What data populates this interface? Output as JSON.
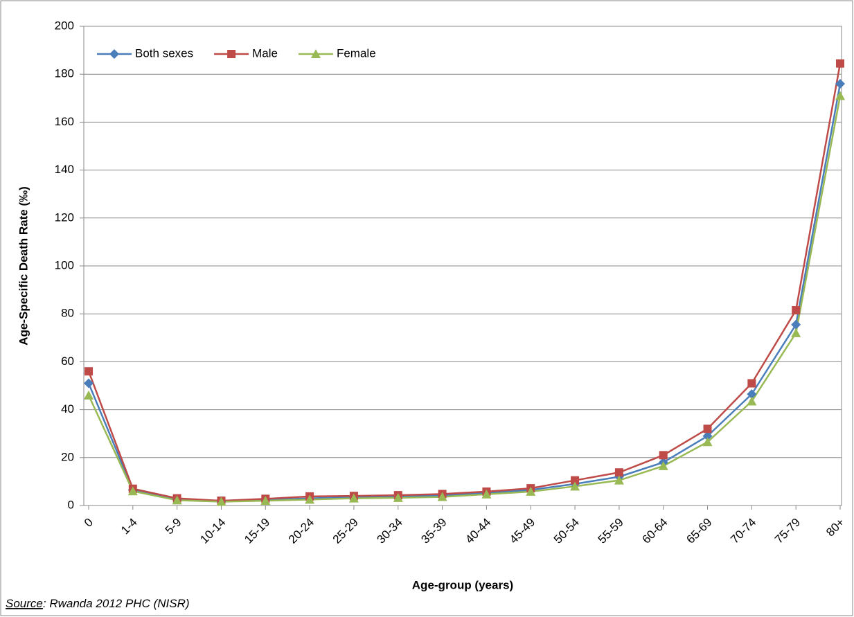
{
  "chart_data": {
    "type": "line",
    "y_label": "Age-Specific Death Rate (‰)",
    "x_label": "Age-group (years)",
    "source_label": "Source",
    "source_text": ": Rwanda 2012 PHC (NISR)",
    "categories": [
      "0",
      "1-4",
      "5-9",
      "10-14",
      "15-19",
      "20-24",
      "25-29",
      "30-34",
      "35-39",
      "40-44",
      "45-49",
      "50-54",
      "55-59",
      "60-64",
      "65-69",
      "70-74",
      "75-79",
      "80+"
    ],
    "series": [
      {
        "name": "Both sexes",
        "color": "#4a7ebb",
        "marker": "diamond",
        "values": [
          51,
          6.5,
          2.5,
          1.8,
          2.3,
          3,
          3.5,
          3.8,
          4.2,
          5.2,
          6.5,
          9,
          12,
          18,
          29,
          46.5,
          75.5,
          176
        ]
      },
      {
        "name": "Male",
        "color": "#be4b48",
        "marker": "square",
        "values": [
          56,
          7,
          3,
          2,
          2.8,
          3.8,
          4,
          4.3,
          4.8,
          5.8,
          7.2,
          10.5,
          13.8,
          21,
          32,
          51,
          81.5,
          184.5
        ]
      },
      {
        "name": "Female",
        "color": "#98b954",
        "marker": "triangle",
        "values": [
          46,
          6,
          2.2,
          1.6,
          2,
          2.5,
          3,
          3.2,
          3.6,
          4.7,
          5.8,
          8,
          10.5,
          16.5,
          26.5,
          43.5,
          72,
          171
        ]
      }
    ],
    "ylim": [
      0,
      200
    ],
    "yticks": [
      0,
      20,
      40,
      60,
      80,
      100,
      120,
      140,
      160,
      180,
      200
    ],
    "grid": true,
    "legend": "top-left"
  }
}
